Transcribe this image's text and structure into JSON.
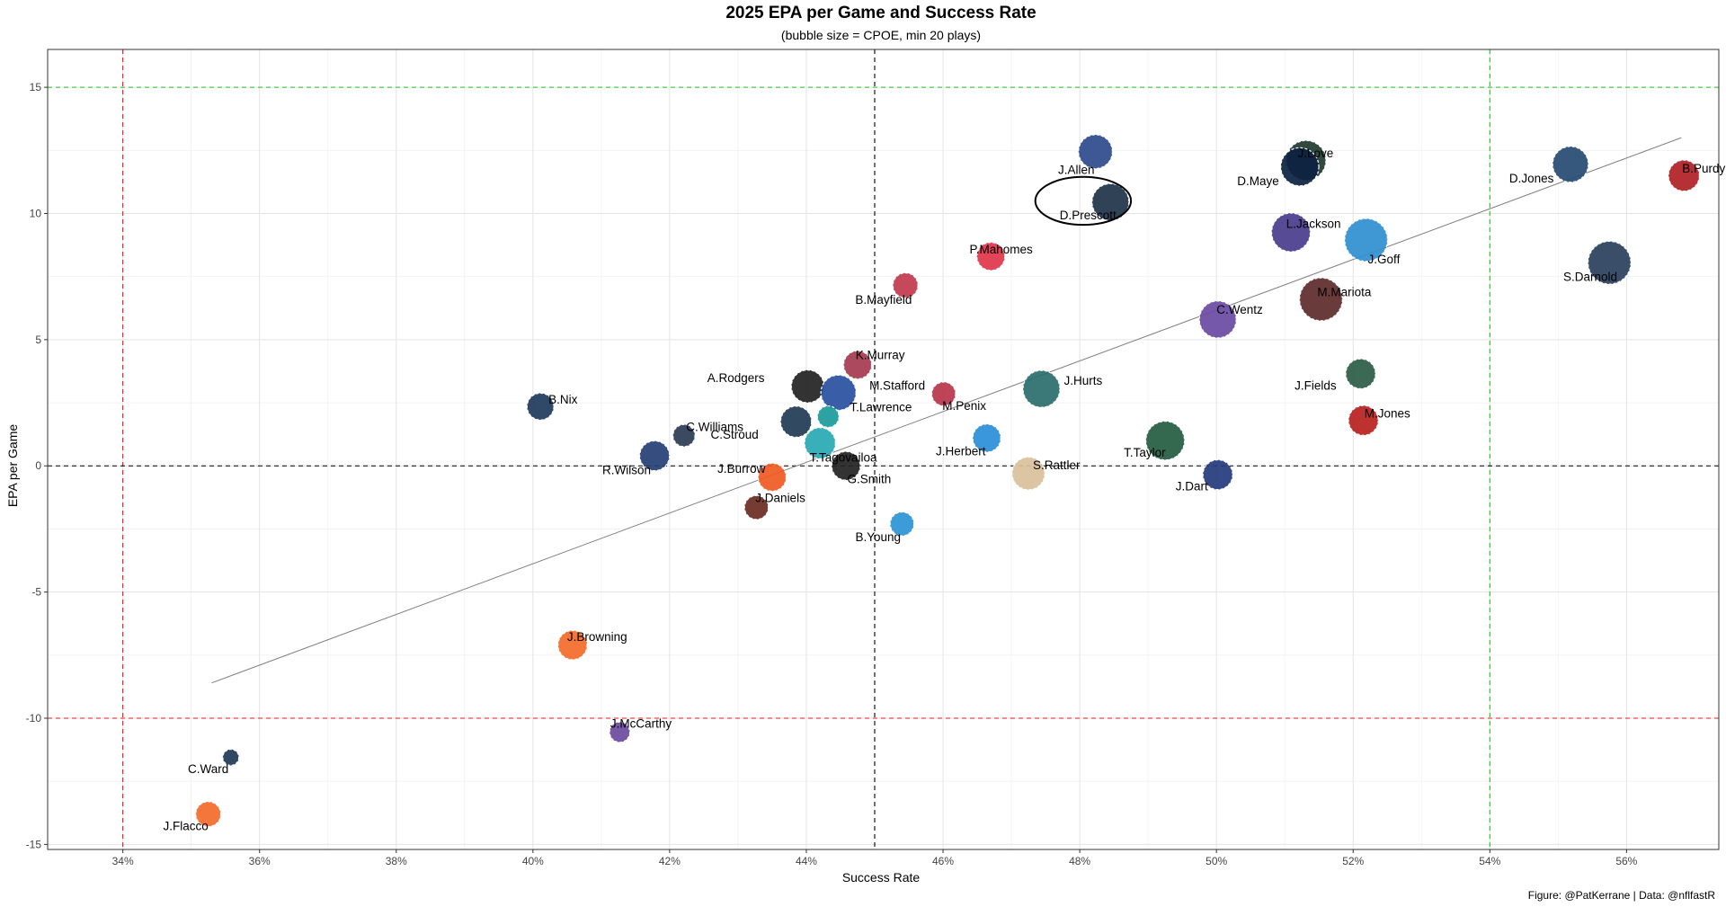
{
  "chart_data": {
    "type": "scatter",
    "title": "2025 EPA per Game and Success Rate",
    "subtitle": "(bubble size = CPOE, min 20 plays)",
    "xlabel": "Success Rate",
    "ylabel": "EPA per Game",
    "caption": "Figure: @PatKerrane | Data: @nflfastR",
    "xlim": [
      0.329,
      0.5735
    ],
    "ylim": [
      -15.2,
      16.5
    ],
    "x_ticks": [
      0.34,
      0.36,
      0.38,
      0.4,
      0.42,
      0.44,
      0.46,
      0.48,
      0.5,
      0.52,
      0.54,
      0.56
    ],
    "x_tick_labels": [
      "34%",
      "36%",
      "38%",
      "40%",
      "42%",
      "44%",
      "46%",
      "48%",
      "50%",
      "52%",
      "54%",
      "56%"
    ],
    "y_ticks": [
      -15,
      -10,
      -5,
      0,
      5,
      10,
      15
    ],
    "y_tick_labels": [
      "-15",
      "-10",
      "-5",
      "0",
      "5",
      "10",
      "15"
    ],
    "grid": true,
    "reference_lines": {
      "vertical": [
        {
          "x": 0.34,
          "color": "#e8191d"
        },
        {
          "x": 0.45,
          "color": "#000000"
        },
        {
          "x": 0.54,
          "color": "#22c022"
        }
      ],
      "horizontal": [
        {
          "y": -10,
          "color": "#e8191d"
        },
        {
          "y": 0,
          "color": "#000000"
        },
        {
          "y": 15,
          "color": "#22c022"
        }
      ]
    },
    "trend_line": {
      "x": [
        0.353,
        0.568
      ],
      "y": [
        -8.6,
        13.0
      ],
      "color": "#808080"
    },
    "highlight": {
      "label": "D.Prescott",
      "cx": 0.4805,
      "cy": 10.5,
      "rx": 0.007,
      "ry": 0.95
    },
    "points": [
      {
        "label": "J.Allen",
        "x": 0.4823,
        "y": 12.45,
        "size": 4.5,
        "color": "#2e4a8c",
        "lx": 0.4795,
        "ly": 11.75
      },
      {
        "label": "J.Love",
        "x": 0.5131,
        "y": 12.1,
        "size": 5.5,
        "color": "#1f3a2e",
        "lx": 0.5145,
        "ly": 12.4
      },
      {
        "label": "D.Maye",
        "x": 0.5122,
        "y": 11.85,
        "size": 5.2,
        "color": "#0b2240",
        "lx": 0.5061,
        "ly": 11.3
      },
      {
        "label": "D.Jones",
        "x": 0.5518,
        "y": 11.95,
        "size": 4.8,
        "color": "#264a72",
        "lx": 0.5461,
        "ly": 11.4
      },
      {
        "label": "B.Purdy",
        "x": 0.5684,
        "y": 11.5,
        "size": 4.0,
        "color": "#b01f24",
        "lx": 0.5713,
        "ly": 11.8
      },
      {
        "label": "D.Prescott",
        "x": 0.4845,
        "y": 10.45,
        "size": 5.0,
        "color": "#1e3248",
        "lx": 0.4812,
        "ly": 9.95
      },
      {
        "label": "L.Jackson",
        "x": 0.5109,
        "y": 9.25,
        "size": 5.3,
        "color": "#4a3c8c",
        "lx": 0.5142,
        "ly": 9.6
      },
      {
        "label": "J.Goff",
        "x": 0.5219,
        "y": 8.95,
        "size": 6.0,
        "color": "#2f8fd0",
        "lx": 0.5245,
        "ly": 8.2
      },
      {
        "label": "S.Darnold",
        "x": 0.5575,
        "y": 8.05,
        "size": 6.0,
        "color": "#2a3f5c",
        "lx": 0.5547,
        "ly": 7.5
      },
      {
        "label": "P.Mahomes",
        "x": 0.467,
        "y": 8.3,
        "size": 3.5,
        "color": "#e0344a",
        "lx": 0.4685,
        "ly": 8.6
      },
      {
        "label": "B.Mayfield",
        "x": 0.4545,
        "y": 7.15,
        "size": 3.0,
        "color": "#c0394c",
        "lx": 0.4513,
        "ly": 6.6
      },
      {
        "label": "M.Mariota",
        "x": 0.5153,
        "y": 6.6,
        "size": 6.0,
        "color": "#5c2a2a",
        "lx": 0.5187,
        "ly": 6.9
      },
      {
        "label": "C.Wentz",
        "x": 0.5002,
        "y": 5.8,
        "size": 5.0,
        "color": "#6a4aa4",
        "lx": 0.5034,
        "ly": 6.2
      },
      {
        "label": "K.Murray",
        "x": 0.4475,
        "y": 4.0,
        "size": 3.5,
        "color": "#a63a50",
        "lx": 0.4508,
        "ly": 4.4
      },
      {
        "label": "J.Fields",
        "x": 0.5211,
        "y": 3.65,
        "size": 3.8,
        "color": "#2a5c44",
        "lx": 0.5145,
        "ly": 3.2
      },
      {
        "label": "A.Rodgers",
        "x": 0.4402,
        "y": 3.15,
        "size": 4.3,
        "color": "#222222",
        "lx": 0.4297,
        "ly": 3.5
      },
      {
        "label": "M.Stafford",
        "x": 0.4447,
        "y": 2.9,
        "size": 4.7,
        "color": "#2850a0",
        "lx": 0.4533,
        "ly": 3.2
      },
      {
        "label": "J.Hurts",
        "x": 0.4744,
        "y": 3.05,
        "size": 5.0,
        "color": "#2a6c6c",
        "lx": 0.4805,
        "ly": 3.4
      },
      {
        "label": "M.Penix",
        "x": 0.4601,
        "y": 2.85,
        "size": 2.8,
        "color": "#b8344a",
        "lx": 0.4631,
        "ly": 2.4
      },
      {
        "label": "B.Nix",
        "x": 0.4011,
        "y": 2.35,
        "size": 3.3,
        "color": "#1f3a5c",
        "lx": 0.4044,
        "ly": 2.65
      },
      {
        "label": "T.Lawrence",
        "x": 0.4432,
        "y": 1.95,
        "size": 2.4,
        "color": "#1a9a9a",
        "lx": 0.4509,
        "ly": 2.35
      },
      {
        "label": "M.Jones",
        "x": 0.5215,
        "y": 1.8,
        "size": 3.8,
        "color": "#b82020",
        "lx": 0.525,
        "ly": 2.1
      },
      {
        "label": "C.Stroud",
        "x": 0.4385,
        "y": 1.75,
        "size": 4.0,
        "color": "#1f3a54",
        "lx": 0.4295,
        "ly": 1.25
      },
      {
        "label": "C.Williams",
        "x": 0.4221,
        "y": 1.2,
        "size": 2.5,
        "color": "#2a3a54",
        "lx": 0.4266,
        "ly": 1.55
      },
      {
        "label": "J.Herbert",
        "x": 0.4664,
        "y": 1.1,
        "size": 3.5,
        "color": "#2a8ed8",
        "lx": 0.4626,
        "ly": 0.6
      },
      {
        "label": "T.Taylor",
        "x": 0.4925,
        "y": 1.0,
        "size": 5.3,
        "color": "#245c40",
        "lx": 0.4895,
        "ly": 0.55
      },
      {
        "label": "T.Tagovailoa",
        "x": 0.442,
        "y": 0.9,
        "size": 4.0,
        "color": "#28a8b4",
        "lx": 0.4454,
        "ly": 0.35
      },
      {
        "label": "R.Wilson",
        "x": 0.4178,
        "y": 0.4,
        "size": 3.8,
        "color": "#243e74",
        "lx": 0.4137,
        "ly": -0.15
      },
      {
        "label": "S.Rattler",
        "x": 0.4725,
        "y": -0.3,
        "size": 4.3,
        "color": "#d8c09a",
        "lx": 0.4766,
        "ly": 0.05
      },
      {
        "label": "G.Smith",
        "x": 0.4458,
        "y": 0.0,
        "size": 3.6,
        "color": "#222222",
        "lx": 0.4492,
        "ly": -0.5
      },
      {
        "label": "J.Burrow",
        "x": 0.435,
        "y": -0.45,
        "size": 3.5,
        "color": "#f05a22",
        "lx": 0.4305,
        "ly": -0.1
      },
      {
        "label": "J.Dart",
        "x": 0.5002,
        "y": -0.35,
        "size": 3.8,
        "color": "#243a7c",
        "lx": 0.4964,
        "ly": -0.8
      },
      {
        "label": "J.Daniels",
        "x": 0.4327,
        "y": -1.65,
        "size": 2.8,
        "color": "#6a2a22",
        "lx": 0.4362,
        "ly": -1.25
      },
      {
        "label": "B.Young",
        "x": 0.454,
        "y": -2.3,
        "size": 2.8,
        "color": "#2a94d4",
        "lx": 0.4505,
        "ly": -2.8
      },
      {
        "label": "J.Browning",
        "x": 0.4058,
        "y": -7.1,
        "size": 3.7,
        "color": "#f46a2a",
        "lx": 0.4094,
        "ly": -6.75
      },
      {
        "label": "J.McCarthy",
        "x": 0.4127,
        "y": -10.55,
        "size": 2.2,
        "color": "#6a4aa0",
        "lx": 0.4158,
        "ly": -10.2
      },
      {
        "label": "C.Ward",
        "x": 0.3558,
        "y": -11.55,
        "size": 1.5,
        "color": "#1f3a54",
        "lx": 0.3525,
        "ly": -12.0
      },
      {
        "label": "J.Flacco",
        "x": 0.3525,
        "y": -13.8,
        "size": 3.0,
        "color": "#f46a2a",
        "lx": 0.3492,
        "ly": -14.25
      }
    ]
  }
}
